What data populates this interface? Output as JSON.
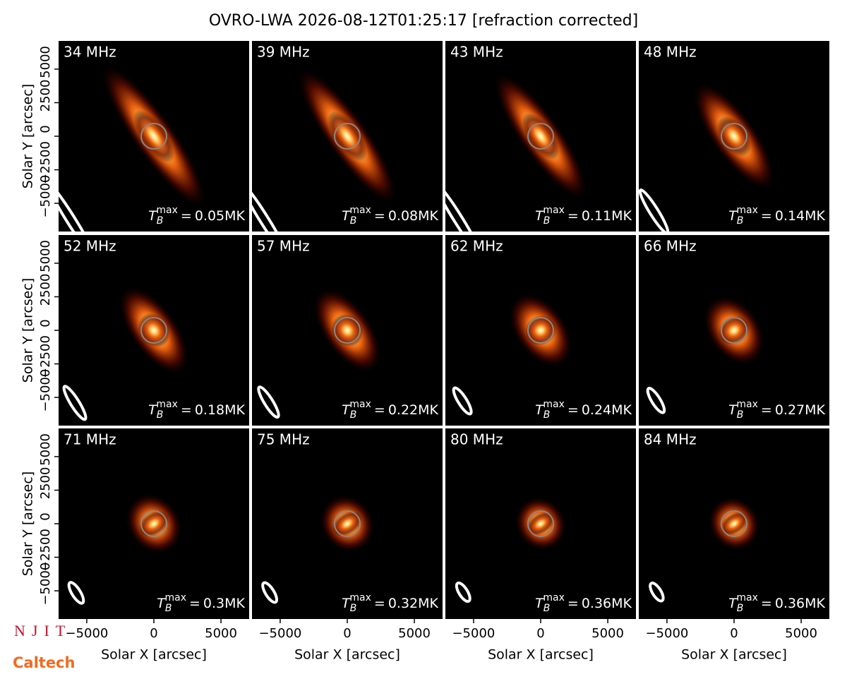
{
  "chart_data": {
    "type": "heatmap",
    "title": "OVRO-LWA 2026-08-12T01:25:17 [refraction corrected]",
    "xlabel": "Solar X [arcsec]",
    "ylabel": "Solar Y [arcsec]",
    "xlim": [
      -7100,
      7100
    ],
    "ylim": [
      -7100,
      7100
    ],
    "xticks": [
      {
        "value": -5000,
        "label": "−5000"
      },
      0,
      5000
    ],
    "yticks": [
      {
        "value": -5000,
        "label": "−5000"
      },
      {
        "value": -2500,
        "label": "−2500"
      },
      0,
      2500,
      5000
    ],
    "tb_symbol": "T",
    "tb_sub": "B",
    "tb_sup": "max",
    "tb_equals": "=",
    "tb_unit": "MK",
    "panels": [
      {
        "frequency": "34 MHz",
        "tb_max": 0.05
      },
      {
        "frequency": "39 MHz",
        "tb_max": 0.08
      },
      {
        "frequency": "43 MHz",
        "tb_max": 0.11
      },
      {
        "frequency": "48 MHz",
        "tb_max": 0.14
      },
      {
        "frequency": "52 MHz",
        "tb_max": 0.18
      },
      {
        "frequency": "57 MHz",
        "tb_max": 0.22
      },
      {
        "frequency": "62 MHz",
        "tb_max": 0.24
      },
      {
        "frequency": "66 MHz",
        "tb_max": 0.27
      },
      {
        "frequency": "71 MHz",
        "tb_max": 0.3
      },
      {
        "frequency": "75 MHz",
        "tb_max": 0.32
      },
      {
        "frequency": "80 MHz",
        "tb_max": 0.36
      },
      {
        "frequency": "84 MHz",
        "tb_max": 0.36
      }
    ]
  },
  "logos": [
    "NJIT",
    "Caltech"
  ]
}
